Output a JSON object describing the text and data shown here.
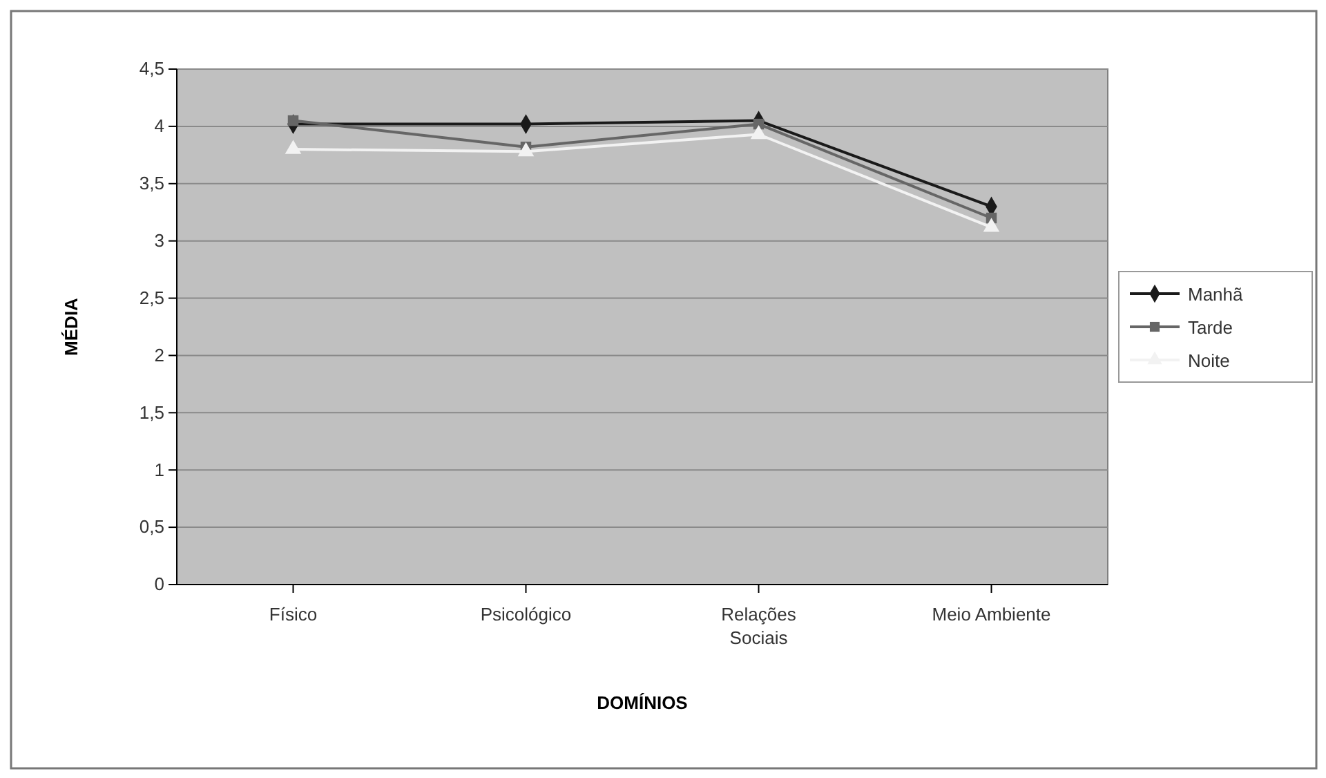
{
  "chart_data": {
    "type": "line",
    "xlabel": "DOMÍNIOS",
    "ylabel": "MÉDIA",
    "categories": [
      "Físico",
      "Psicológico",
      "Relações Sociais",
      "Meio Ambiente"
    ],
    "series": [
      {
        "name": "Manhã",
        "color": "#1a1a1a",
        "values": [
          4.02,
          4.02,
          4.05,
          3.3
        ],
        "marker": "diamond"
      },
      {
        "name": "Tarde",
        "color": "#666666",
        "values": [
          4.05,
          3.82,
          4.02,
          3.2
        ],
        "marker": "square"
      },
      {
        "name": "Noite",
        "color": "#f2f2f2",
        "values": [
          3.8,
          3.78,
          3.93,
          3.12
        ],
        "marker": "triangle"
      }
    ],
    "ylim": [
      0,
      4.5
    ],
    "yticks": [
      0,
      {
        "value": 0.5,
        "label": "0,5"
      },
      1,
      {
        "value": 1.5,
        "label": "1,5"
      },
      2,
      {
        "value": 2.5,
        "label": "2,5"
      },
      3,
      {
        "value": 3.5,
        "label": "3,5"
      },
      4,
      {
        "value": 4.5,
        "label": "4,5"
      }
    ],
    "grid": "y",
    "legend": "right"
  }
}
